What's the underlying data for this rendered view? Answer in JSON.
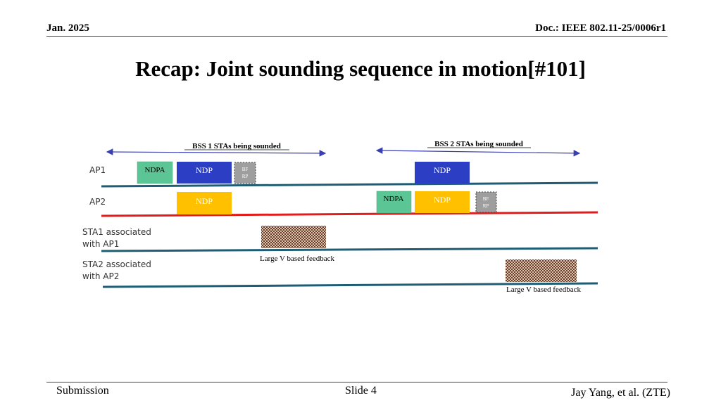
{
  "header": {
    "date": "Jan. 2025",
    "doc": "Doc.: IEEE 802.11-25/0006r1"
  },
  "title": "Recap: Joint sounding sequence in motion[#101]",
  "diagram": {
    "bss1_label": "BSS 1 STAs being sounded",
    "bss2_label": "BSS 2 STAs being sounded",
    "rows": {
      "ap1": "AP1",
      "ap2": "AP2",
      "sta1_line1": "STA1 associated",
      "sta1_line2": "with AP1",
      "sta2_line1": "STA2 associated",
      "sta2_line2": "with AP2"
    },
    "frames": {
      "ndpa": "NDPA",
      "ndp": "NDP",
      "bfrp_line1": "BF",
      "bfrp_line2": "RP"
    },
    "feedback_label": "Large V based feedback",
    "colors": {
      "ndpa": "#5cc595",
      "ndp_ap1": "#2b3ec4",
      "ndp_ap2": "#ffc000",
      "bfrp": "#9e9e9e",
      "ap1_line": "#1e5d73",
      "ap2_line": "#e01c1c",
      "sta_line": "#1e5d73",
      "arrow": "#3a3fb0"
    }
  },
  "footer": {
    "left": "Submission",
    "center": "Slide 4",
    "right": "Jay Yang, et al. (ZTE)"
  }
}
